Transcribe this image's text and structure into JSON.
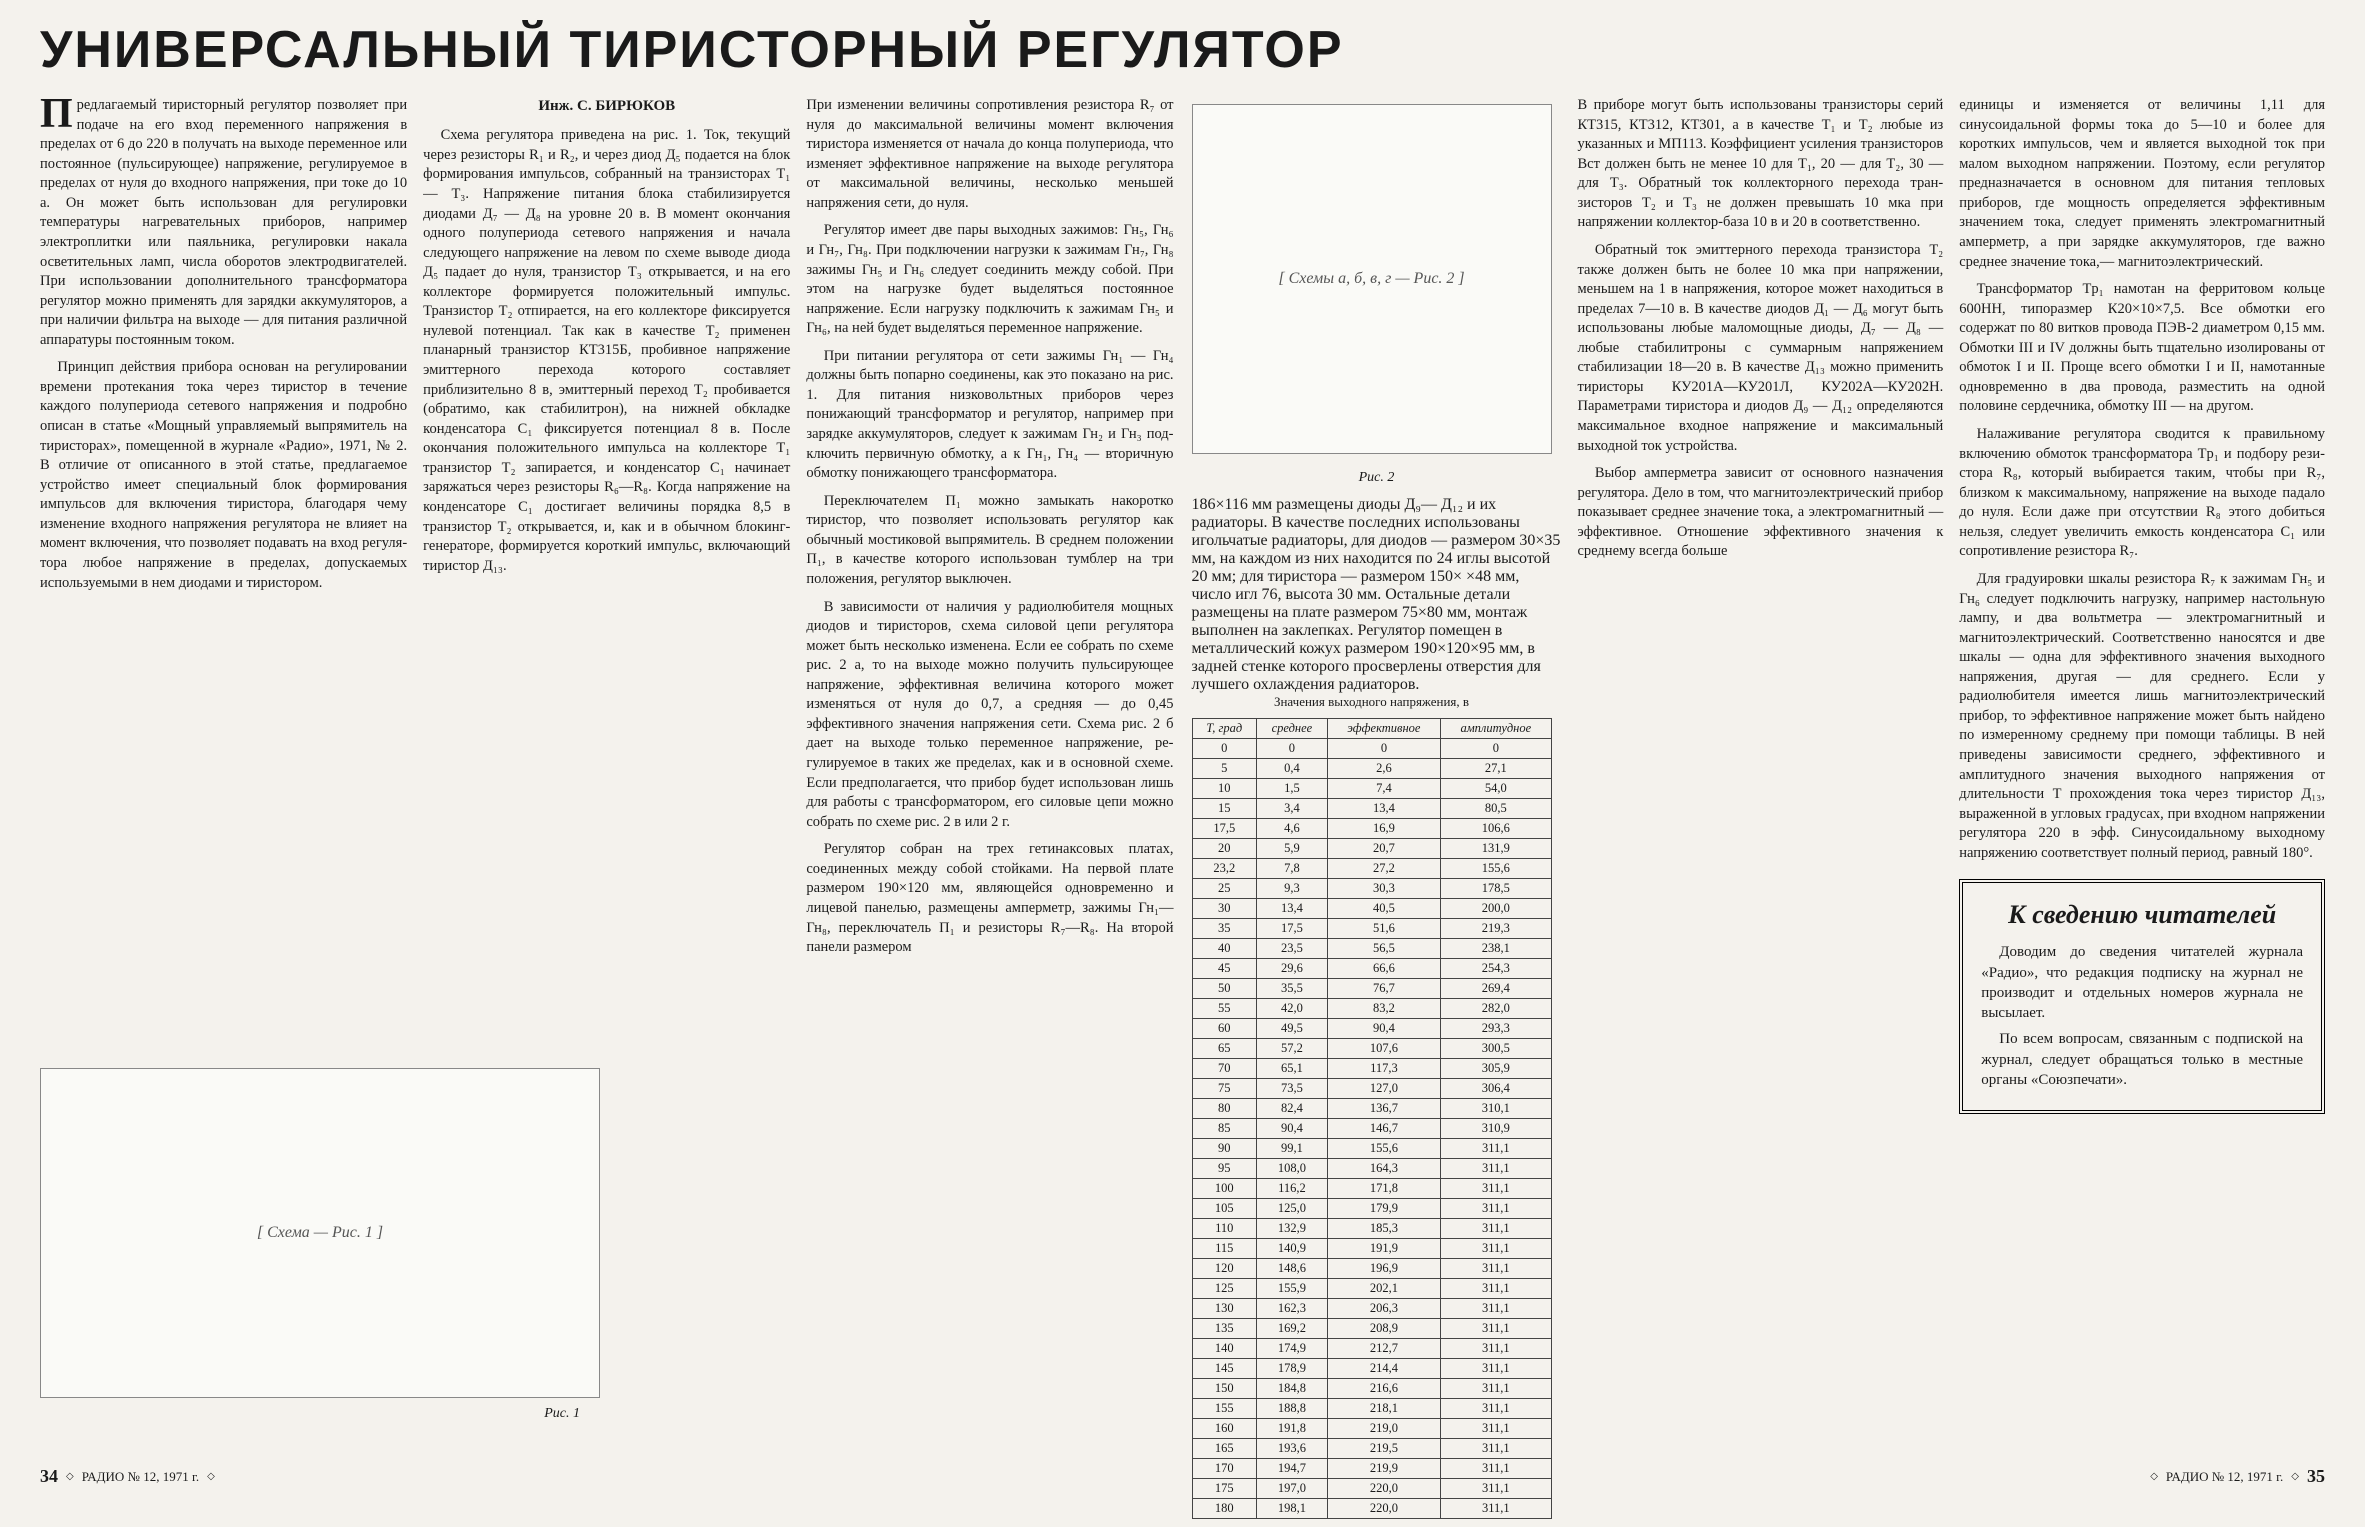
{
  "title": "УНИВЕРСАЛЬНЫЙ ТИРИСТОРНЫЙ РЕГУЛЯТОР",
  "author": "Инж. С. БИРЮКОВ",
  "footer": {
    "left_page": "34",
    "right_page": "35",
    "journal": "РАДИО № 12, 1971 г."
  },
  "fig1_caption": "Рис. 1",
  "fig2_caption": "Рис. 2",
  "para": {
    "p1": "Предлагаемый тиристорный регу­лятор позволяет при подаче на его вход переменного напряже­ния в пределах от 6 до 220 в получать на выходе переменное или постоян­ное (пульсирующее) напряжение, ре­гулируемое в пределах от нуля до входного напряжения, при токе до 10 а. Он может быть использован для регулировки температуры на­гревательных приборов, например электроплитки или паяльника, ре­гулировки накала осветительных ламп, числа оборотов электродвига­телей. При использовании дополни­тельного трансформатора регулятор можно применять для зарядки ак­кумуляторов, а при наличии фильтра на выходе — для питания различной аппаратуры постоянным током.",
    "p2": "Принцип действия прибора осно­ван на регулировании времени про­текания тока через тиристор в те­чение каждого полупериода сетевого напряжения и подробно описан в статье «Мощный управляемый вы­прямитель на тиристорах», помещен­ной в журнале «Радио», 1971, № 2. В отличие от описанного в этой статье, предлагаемое устройство име­ет специальный блок формирования импульсов для включения тири­стора, благодаря чему изменение входного напряжения регулятора не влияет на момент включения, что позволяет подавать на вход регуля­тора любое напряжение в пределах, допускаемых используемыми в нем диодами и тиристором.",
    "p3": "Схема регулятора приведена на рис. 1. Ток, текущий через рези­сторы R₁ и R₂, и через диод Д₅ подается на блок формирования им­пульсов, собранный на транзисторах T₁ — T₃. Напряжение питания блока стабилизируется диодами Д₇ — Д₈ на уровне 20 в. В момент окончания одного полупериода сетевого напря­жения и начала следующего напря­жение на левом по схеме выводе диода Д₅ падает до нуля, транзистор T₃ открывается, и на его коллекторе формируется положительный им­пульс. Транзистор T₂ отпирается, на его коллекторе фиксируется ну­левой потенциал. Так как в качестве T₂ применен планарный транзистор КТ315Б, пробивное напряжение эмит­терного перехода которого состав­ляет приблизительно 8 в, эмиттерный переход T₂ пробивается (обратимо, как стабилитрон), на нижней об­кладке конденсатора C₁ фиксируется потенциал 8 в. После окончания положительного импульса на кол­лекторе T₁ транзистор T₂ запира­ется, и конденсатор C₁ начинает заряжаться через резисторы R₆—R₈. Когда напряжение на конденсаторе C₁ достигает величины порядка 8,5 в транзистор T₂ открывается, и, как и в обычном блокинг-генераторе, фор­мируется короткий импульс, вклю­чающий тиристор Д₁₃.",
    "p4": "При изменении величины сопро­тивления резистора R₇ от нуля до максимальной величины момент включения тиристора изменяется от начала до конца полупериода, что изменяет эффективное напряжение на выходе регулятора от максималь­ной величины, несколько меньшей напряжения сети, до нуля.",
    "p5": "Регулятор имеет две пары выход­ных зажимов: Гн₅, Гн₆ и Гн₇, Гн₈. При подключении нагрузки к зажи­мам Гн₇, Гн₈ зажимы Гн₅ и Гн₆ следует соединить между собой. При этом на нагрузке будет выделяться постоянное напряжение. Если на­грузку подключить к зажимам Гн₅ и Гн₆, на ней будет выделяться переменное напряжение.",
    "p6": "При питании регулятора от сети зажимы Гн₁ — Гн₄ должны быть попарно соединены, как это показано на рис. 1. Для питания низковольт­ных приборов через понижающий трансформатор и регулятор, напри­мер при зарядке аккумуляторов, следует к зажимам Гн₂ и Гн₃ под­ключить первичную обмотку, а к Гн₁, Гн₄ — вторичную обмотку по­нижающего трансформатора.",
    "p7": "Переключателем П₁ можно замы­кать накоротко тиристор, что по­зволяет использовать регулятор как обычный мостиковой выпрямитель. В среднем положении П₁, в качестве которого использован тумблер на три положения, регулятор выключен.",
    "p8": "В зависимости от наличия у радио­любителя мощных диодов и тири­сторов, схема силовой цепи регуля­тора может быть несколько изменена. Если ее собрать по схеме рис. 2 а, то на выходе можно получить пуль­сирующее напряжение, эффективная величина которого может изменяться от нуля до 0,7, а средняя — до 0,45 эффективного значения напряжения сети. Схема рис. 2 б дает на выходе только переменное напряжение, ре­гулируемое в таких же пределах, как и в основной схеме. Если пред­полагается, что прибор будет ис­пользован лишь для работы с транс­форматором, его силовые цепи можно собрать по схеме рис. 2 в или 2 г.",
    "p9": "Регулятор собран на трех гети­наксовых платах, соединенных меж­ду собой стойками. На первой плате размером 190×120 мм, являющейся одновременно и лицевой панелью, размещены амперметр, зажимы Гн₁— Гн₈, переключатель П₁ и резисторы R₇—R₈. На второй панели размером",
    "p10": "186×116 мм размещены диоды Д₉— Д₁₂ и их радиаторы. В качестве последних использованы игольчатые радиаторы, для диодов — размером 30×35 мм, на каждом из них на­ходится по 24 иглы высотой 20 мм; для тиристора — размером 150× ×48 мм, число игл 76, высота 30 мм. Остальные детали размещены на плате размером 75×80 мм, монтаж выполнен на заклепках. Регулятор помещен в металлический кожух размером 190×120×95 мм, в задней стенке которого просверлены от­верстия для лучшего охлаждения радиаторов.",
    "p11": "В приборе могут быть использо­ваны транзисторы серий КТ315, КТ312, КТ301, а в качестве T₁ и T₂ любые из указанных и МП113. Коэф­фициент усиления транзисторов Bст должен быть не менее 10 для T₁, 20 — для T₂, 30 — для T₃. Обратный ток коллекторного перехода тран­зисторов T₂ и T₃ не должен превы­шать 10 мка при напряжении кол­лектор-база 10 в и 20 в соответствен­но.",
    "p12": "Обратный ток эмиттерного пере­хода транзистора T₂ также должен быть не более 10 мка при напря­жении, меньшем на 1 в напряжения, которое может находиться в пределах 7—10 в. В качестве диодов Д₁ — Д₆ могут быть использованы любые маломощные диоды, Д₇ — Д₈ — любые стабилитроны с суммарным на­пряжением стабилизации 18—20 в. В качестве Д₁₃ можно приме­нить тиристоры КУ201А—КУ201Л, КУ202А—КУ202Н. Параметрами тиристора и диодов Д₉ — Д₁₂ опреде­ляются максимальное входное на­пряжение и максимальный выходной ток устройства.",
    "p13": "Выбор амперметра зависит от ос­новного назначения регулятора. Дело в том, что магнитоэлектрический прибор показывает среднее значение тока, а электромагнитный — эффек­тивное. Отношение эффективного зна­чения к среднему всегда больше",
    "p14": "единицы и изменяется от величины 1,11 для синусоидальной формы тока до 5—10 и более для коротких импульсов, чем и является выходной ток при малом выходном напряже­нии. Поэтому, если регулятор пред­назначается в основном для питания тепловых приборов, где мощность определяется эффективным значе­нием тока, следует применять элек­тромагнитный амперметр, а при за­рядке аккумуляторов, где важно среднее значение тока,— магнито­электрический.",
    "p15": "Трансформатор Tp₁ намотан на ферритовом кольце 600НН, типораз­мер К20×10×7,5. Все обмотки его содержат по 80 витков провода ПЭВ-2 диаметром 0,15 мм. Обмотки III и IV должны быть тщательно изолированы от обмоток I и II. Проще всего обмотки I и II, намотанные одно­временно в два провода, разместить на одной половине сердечника, об­мотку III — на другом.",
    "p16": "Налаживание регулятора сводится к правильному включению обмоток трансформатора Tp₁ и подбору рези­стора R₈, который выбирается таким, чтобы при R₇, близком к максималь­ному, напряжение на выходе падало до нуля. Если даже при отсутствии R₈ этого добиться нельзя, следует увеличить емкость конденсатора C₁ или сопротивление резистора R₇.",
    "p17": "Для градуировки шкалы резистора R₇ к зажимам Гн₅ и Гн₆ следует подключить нагрузку, например на­стольную лампу, и два вольтметра — электромагнитный и магнитоэлек­трический. Соответственно наносятся и две шкалы — одна для эффектив­ного значения выходного напряже­ния, другая — для среднего. Если у радиолюбителя имеется лишь маг­нитоэлектрический прибор, то эф­фективное напряжение может быть найдено по измеренному среднему при помощи таблицы. В ней приведены зависимости среднего, эффективного и амплитудного значения выходного напряжения от длительности T про­хождения тока через тиристор Д₁₃, выраженной в угловых градусах, при входном напряжении регулятора 220 в эфф. Синусоидальному выход­ному напряжению соответствует пол­ный период, равный 180°."
  },
  "table": {
    "title": "Значения выходного напряжения, в",
    "col0": "T, град",
    "col1": "среднее",
    "col2": "эффективное",
    "col3": "амплитудное",
    "rows": [
      [
        "0",
        "0",
        "0",
        "0"
      ],
      [
        "5",
        "0,4",
        "2,6",
        "27,1"
      ],
      [
        "10",
        "1,5",
        "7,4",
        "54,0"
      ],
      [
        "15",
        "3,4",
        "13,4",
        "80,5"
      ],
      [
        "17,5",
        "4,6",
        "16,9",
        "106,6"
      ],
      [
        "20",
        "5,9",
        "20,7",
        "131,9"
      ],
      [
        "23,2",
        "7,8",
        "27,2",
        "155,6"
      ],
      [
        "25",
        "9,3",
        "30,3",
        "178,5"
      ],
      [
        "30",
        "13,4",
        "40,5",
        "200,0"
      ],
      [
        "35",
        "17,5",
        "51,6",
        "219,3"
      ],
      [
        "40",
        "23,5",
        "56,5",
        "238,1"
      ],
      [
        "45",
        "29,6",
        "66,6",
        "254,3"
      ],
      [
        "50",
        "35,5",
        "76,7",
        "269,4"
      ],
      [
        "55",
        "42,0",
        "83,2",
        "282,0"
      ],
      [
        "60",
        "49,5",
        "90,4",
        "293,3"
      ],
      [
        "65",
        "57,2",
        "107,6",
        "300,5"
      ],
      [
        "70",
        "65,1",
        "117,3",
        "305,9"
      ],
      [
        "75",
        "73,5",
        "127,0",
        "306,4"
      ],
      [
        "80",
        "82,4",
        "136,7",
        "310,1"
      ],
      [
        "85",
        "90,4",
        "146,7",
        "310,9"
      ],
      [
        "90",
        "99,1",
        "155,6",
        "311,1"
      ],
      [
        "95",
        "108,0",
        "164,3",
        "311,1"
      ],
      [
        "100",
        "116,2",
        "171,8",
        "311,1"
      ],
      [
        "105",
        "125,0",
        "179,9",
        "311,1"
      ],
      [
        "110",
        "132,9",
        "185,3",
        "311,1"
      ],
      [
        "115",
        "140,9",
        "191,9",
        "311,1"
      ],
      [
        "120",
        "148,6",
        "196,9",
        "311,1"
      ],
      [
        "125",
        "155,9",
        "202,1",
        "311,1"
      ],
      [
        "130",
        "162,3",
        "206,3",
        "311,1"
      ],
      [
        "135",
        "169,2",
        "208,9",
        "311,1"
      ],
      [
        "140",
        "174,9",
        "212,7",
        "311,1"
      ],
      [
        "145",
        "178,9",
        "214,4",
        "311,1"
      ],
      [
        "150",
        "184,8",
        "216,6",
        "311,1"
      ],
      [
        "155",
        "188,8",
        "218,1",
        "311,1"
      ],
      [
        "160",
        "191,8",
        "219,0",
        "311,1"
      ],
      [
        "165",
        "193,6",
        "219,5",
        "311,1"
      ],
      [
        "170",
        "194,7",
        "219,9",
        "311,1"
      ],
      [
        "175",
        "197,0",
        "220,0",
        "311,1"
      ],
      [
        "180",
        "198,1",
        "220,0",
        "311,1"
      ]
    ]
  },
  "notice": {
    "heading": "К сведению читателей",
    "p1": "Доводим до сведения читателей журнала «Радио», что редакция подписку на журнал не производит и отдельных номеров журнала не высылает.",
    "p2": "По всем вопросам, связанным с подпиской на журнал, следует обращаться только в местные органы «Союзпечати»."
  },
  "fig1_placeholder": "[ Схема — Рис. 1 ]",
  "fig2_placeholder": "[ Схемы а, б, в, г — Рис. 2 ]"
}
